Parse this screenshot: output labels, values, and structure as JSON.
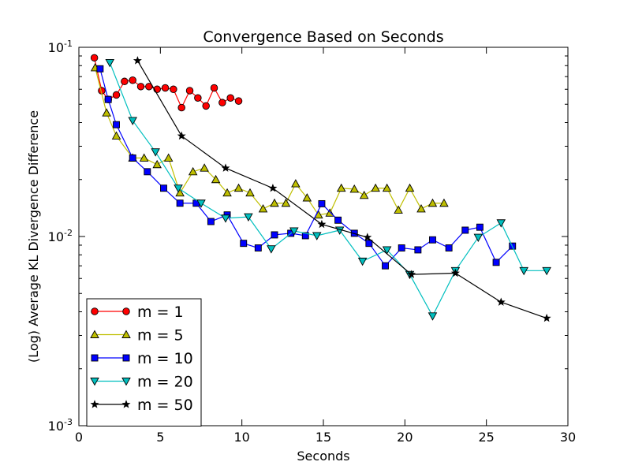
{
  "chart_data": {
    "type": "line",
    "title": "Convergence Based on Seconds",
    "xlabel": "Seconds",
    "ylabel": "(Log) Average KL Divergence Difference",
    "xlim": [
      0,
      30
    ],
    "ylim": [
      0.001,
      0.1
    ],
    "yscale": "log",
    "x_ticks": [
      0,
      5,
      10,
      15,
      20,
      25,
      30
    ],
    "y_ticks": [
      {
        "value": 0.1,
        "base": "10",
        "exp": "-1"
      },
      {
        "value": 0.01,
        "base": "10",
        "exp": "-2"
      },
      {
        "value": 0.001,
        "base": "10",
        "exp": "-3"
      }
    ],
    "grid": false,
    "legend": {
      "placement": "lower-left"
    },
    "series": [
      {
        "name": "m = 1",
        "color": "#ff0000",
        "marker": "circle",
        "x": [
          0.95,
          1.4,
          1.8,
          2.3,
          2.8,
          3.3,
          3.8,
          4.3,
          4.8,
          5.3,
          5.8,
          6.3,
          6.8,
          7.3,
          7.8,
          8.3,
          8.8,
          9.3,
          9.8
        ],
        "y": [
          0.088,
          0.059,
          0.053,
          0.056,
          0.066,
          0.067,
          0.062,
          0.062,
          0.06,
          0.061,
          0.06,
          0.048,
          0.059,
          0.054,
          0.049,
          0.061,
          0.051,
          0.054,
          0.052
        ]
      },
      {
        "name": "m = 5",
        "color": "#bfbf00",
        "marker": "triangle-up",
        "x": [
          1.0,
          1.7,
          2.3,
          3.3,
          4.0,
          4.8,
          5.5,
          6.2,
          7.0,
          7.7,
          8.4,
          9.1,
          9.8,
          10.5,
          11.3,
          12.0,
          12.7,
          13.3,
          14.0,
          14.7,
          15.4,
          16.1,
          16.9,
          17.5,
          18.2,
          18.9,
          19.6,
          20.3,
          21.0,
          21.7,
          22.4
        ],
        "y": [
          0.078,
          0.045,
          0.034,
          0.026,
          0.026,
          0.024,
          0.026,
          0.017,
          0.022,
          0.023,
          0.02,
          0.017,
          0.018,
          0.017,
          0.014,
          0.015,
          0.015,
          0.019,
          0.016,
          0.013,
          0.0133,
          0.018,
          0.0178,
          0.0165,
          0.018,
          0.018,
          0.0138,
          0.018,
          0.014,
          0.015,
          0.015
        ]
      },
      {
        "name": "m = 10",
        "color": "#0000ff",
        "marker": "square",
        "x": [
          1.3,
          1.8,
          2.3,
          3.3,
          4.2,
          5.2,
          6.2,
          7.2,
          8.1,
          9.1,
          10.1,
          11.0,
          12.0,
          13.0,
          13.9,
          14.9,
          15.9,
          16.9,
          17.8,
          18.8,
          19.8,
          20.8,
          21.7,
          22.7,
          23.7,
          24.6,
          25.6,
          26.6
        ],
        "y": [
          0.077,
          0.053,
          0.039,
          0.026,
          0.022,
          0.018,
          0.015,
          0.015,
          0.012,
          0.013,
          0.0092,
          0.0087,
          0.0102,
          0.0104,
          0.0101,
          0.0149,
          0.0122,
          0.0104,
          0.0092,
          0.007,
          0.0087,
          0.0085,
          0.0096,
          0.0087,
          0.0108,
          0.0112,
          0.0073,
          0.0089
        ]
      },
      {
        "name": "m = 20",
        "color": "#00bfbf",
        "marker": "triangle-down",
        "x": [
          1.9,
          3.3,
          4.7,
          6.1,
          7.5,
          9.0,
          10.4,
          11.8,
          13.2,
          14.6,
          16.0,
          17.4,
          18.9,
          20.3,
          21.7,
          23.1,
          24.5,
          25.9,
          27.3,
          28.7
        ],
        "y": [
          0.083,
          0.041,
          0.028,
          0.018,
          0.015,
          0.0125,
          0.0127,
          0.0086,
          0.0107,
          0.0101,
          0.0108,
          0.0074,
          0.0085,
          0.0063,
          0.0038,
          0.0066,
          0.0099,
          0.0118,
          0.0066,
          0.0066
        ]
      },
      {
        "name": "m = 50",
        "color": "#000000",
        "marker": "star",
        "x": [
          3.6,
          6.3,
          9.0,
          11.9,
          14.9,
          17.7,
          20.4,
          23.1,
          25.9,
          28.7
        ],
        "y": [
          0.085,
          0.034,
          0.023,
          0.018,
          0.0116,
          0.0099,
          0.0063,
          0.0064,
          0.0045,
          0.0037
        ]
      }
    ]
  }
}
